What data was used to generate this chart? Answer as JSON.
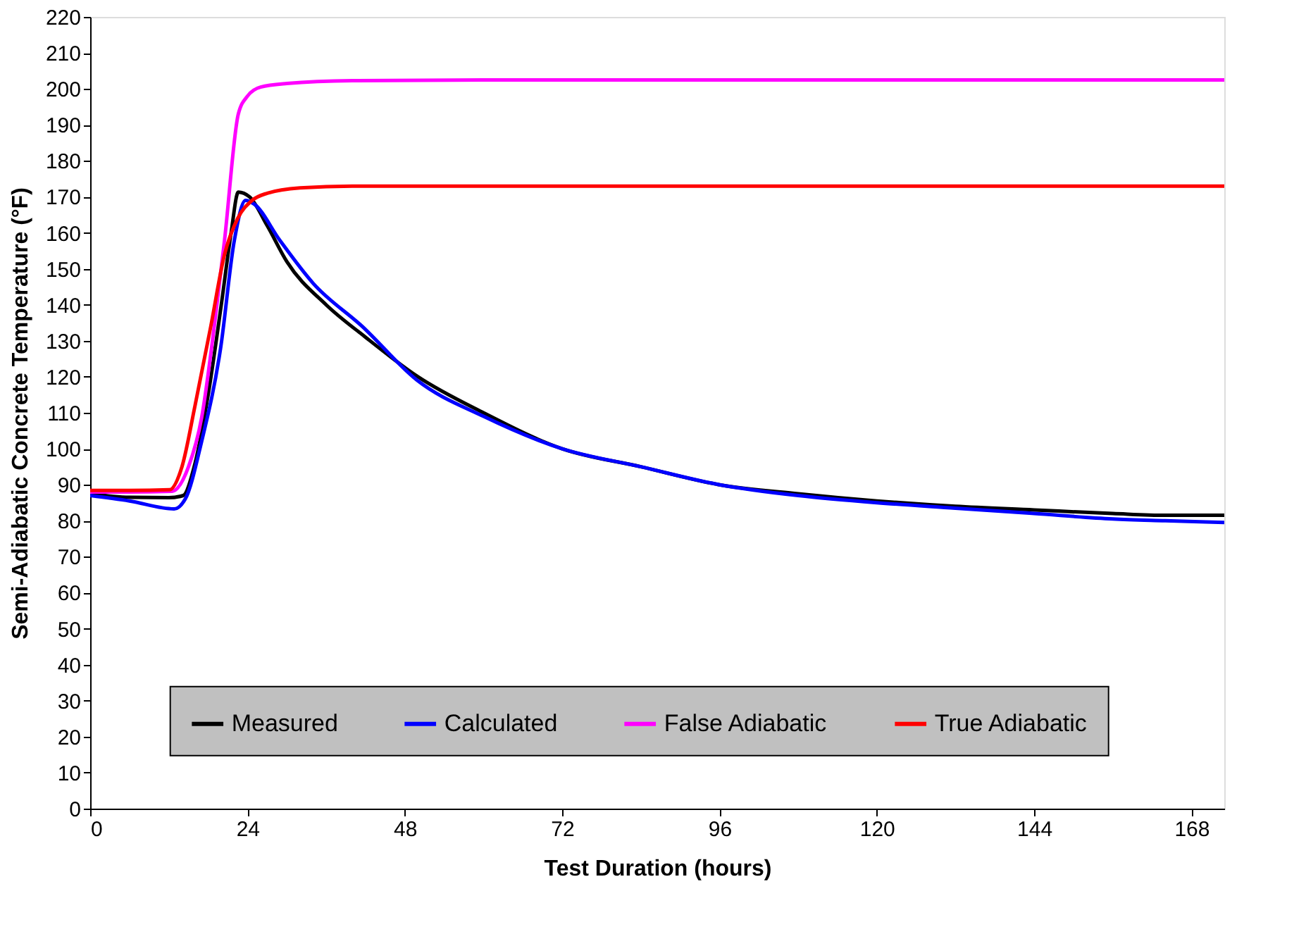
{
  "chart_data": {
    "type": "line",
    "xlabel": "Test Duration (hours)",
    "ylabel": "Semi-Adiabatic Concrete Temperature (°F)",
    "xlim": [
      0,
      173
    ],
    "xticks": [
      0,
      24,
      48,
      72,
      96,
      120,
      144,
      168
    ],
    "ylim": [
      0,
      220
    ],
    "yticks": [
      0,
      10,
      20,
      30,
      40,
      50,
      60,
      70,
      80,
      90,
      100,
      110,
      120,
      130,
      140,
      150,
      160,
      170,
      180,
      190,
      200,
      210,
      220
    ],
    "grid": false,
    "legend": "bottom",
    "line_style": "solid",
    "marker": "none",
    "series": [
      {
        "name": "Measured",
        "color": "#000000",
        "x": [
          0,
          6,
          12,
          14.2,
          16,
          18,
          20,
          21.5,
          22.6,
          24.3,
          27,
          30,
          36,
          42,
          50,
          60,
          72,
          84,
          96,
          108,
          120,
          132,
          144,
          156,
          164,
          173
        ],
        "values": [
          87.5,
          86.5,
          86.4,
          87,
          96,
          115,
          140,
          160,
          171.3,
          170,
          162,
          152,
          140,
          131,
          120,
          110,
          100,
          95,
          90,
          87.5,
          85.5,
          84,
          83,
          82,
          81.5,
          81.5
        ]
      },
      {
        "name": "Calculated",
        "color": "#0000ff",
        "x": [
          0,
          6,
          12.8,
          14.5,
          17,
          19.9,
          22,
          23.7,
          25,
          28.9,
          34,
          41.5,
          49.9,
          60,
          72,
          84,
          96,
          108,
          120,
          132,
          144,
          156,
          164,
          173
        ],
        "values": [
          87,
          85.5,
          83.3,
          86,
          102,
          128,
          158,
          169,
          168,
          158,
          146,
          134,
          119,
          109,
          100,
          95,
          90,
          87,
          85,
          83.5,
          82,
          80.5,
          80,
          79.5
        ]
      },
      {
        "name": "False Adiabatic",
        "color": "#ff00ff",
        "x": [
          0,
          6,
          12.5,
          15,
          17,
          19,
          20.5,
          22.6,
          24,
          26,
          30,
          40,
          60,
          100,
          173
        ],
        "values": [
          88,
          88,
          88.2,
          95,
          108.6,
          135,
          158,
          193,
          198,
          200.5,
          201.5,
          202.3,
          202.5,
          202.5,
          202.5
        ]
      },
      {
        "name": "True Adiabatic",
        "color": "#ff0000",
        "x": [
          0,
          6,
          12.1,
          14,
          16,
          18.4,
          20.5,
          22.5,
          24.7,
          27,
          32,
          40,
          80,
          173
        ],
        "values": [
          88.4,
          88.4,
          88.6,
          95,
          112,
          134,
          154,
          164,
          169,
          171,
          172.5,
          173,
          173,
          173
        ]
      }
    ]
  }
}
